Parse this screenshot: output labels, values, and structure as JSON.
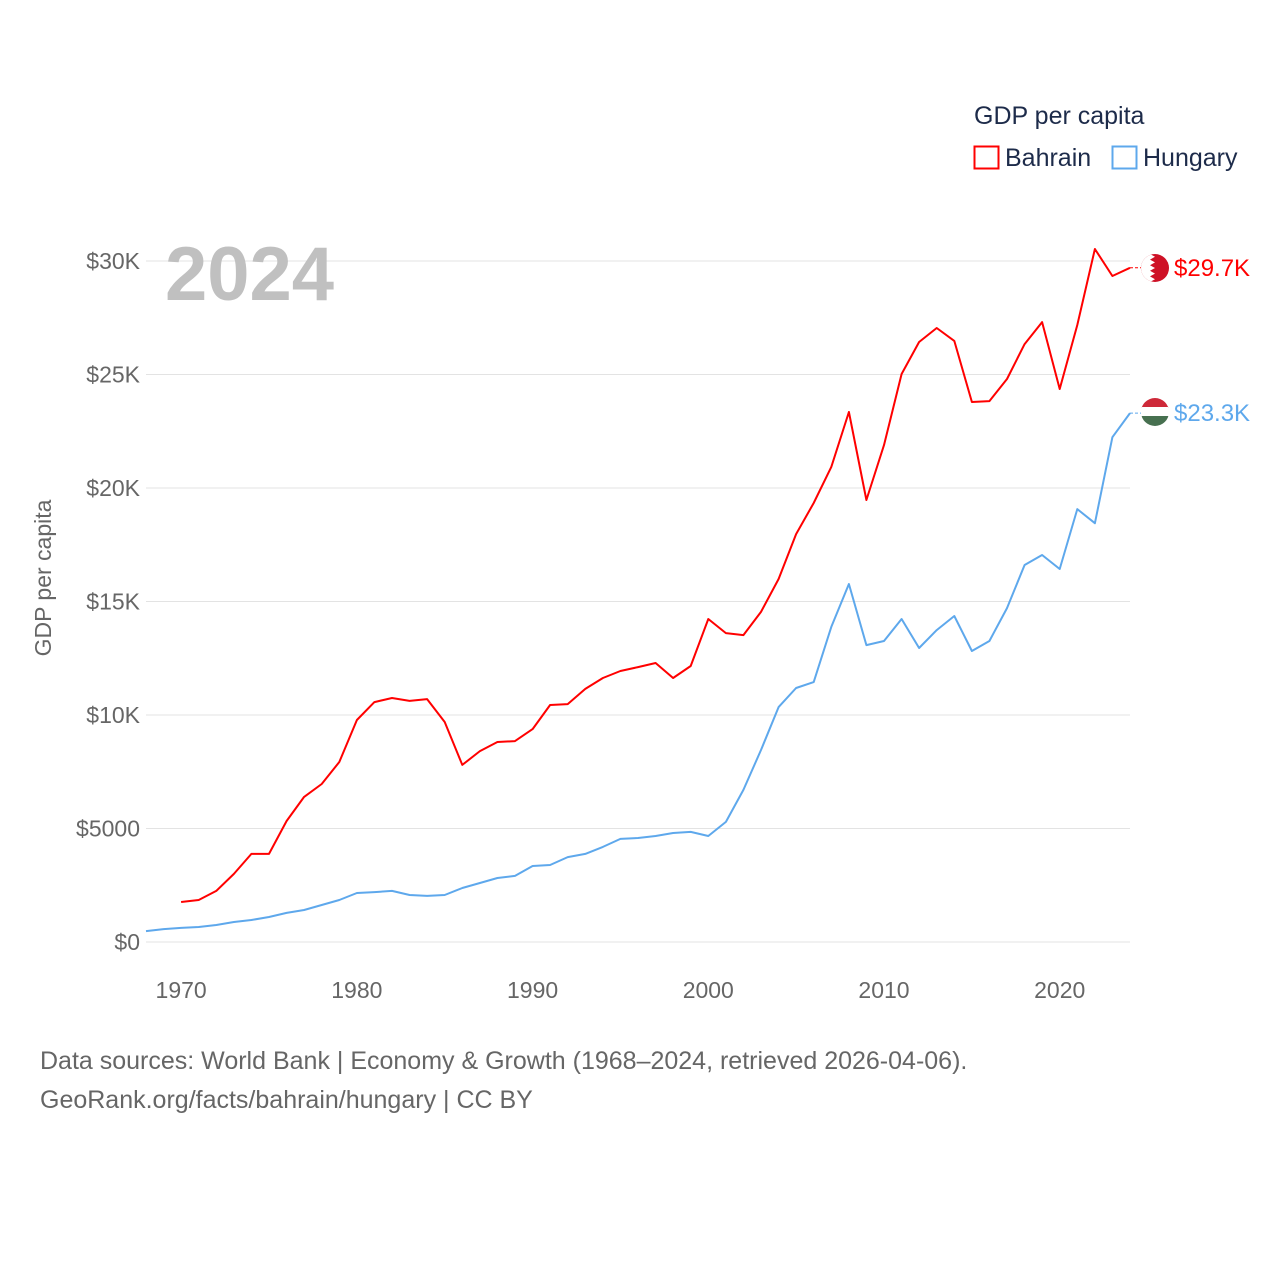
{
  "chart_data": {
    "type": "line",
    "title": "",
    "year_label": "2024",
    "ylabel": "GDP per capita",
    "xlabel": "",
    "xlim": [
      1968,
      2024
    ],
    "ylim": [
      0,
      30000
    ],
    "x_ticks": [
      1970,
      1980,
      1990,
      2000,
      2010,
      2020
    ],
    "x_tick_labels": [
      "1970",
      "1980",
      "1990",
      "2000",
      "2010",
      "2020"
    ],
    "y_ticks": [
      0,
      5000,
      10000,
      15000,
      20000,
      25000,
      30000
    ],
    "y_tick_labels": [
      "$0",
      "$5000",
      "$10K",
      "$15K",
      "$20K",
      "$25K",
      "$30K"
    ],
    "grid": true,
    "legend": {
      "title": "GDP per capita",
      "placement": "top-right"
    },
    "series": [
      {
        "name": "Bahrain",
        "color": "#ff0000",
        "end_label": "$29.7K",
        "flag": "bahrain-flag",
        "x": [
          1970,
          1971,
          1972,
          1973,
          1974,
          1975,
          1976,
          1977,
          1978,
          1979,
          1980,
          1981,
          1982,
          1983,
          1984,
          1985,
          1986,
          1987,
          1988,
          1989,
          1990,
          1991,
          1992,
          1993,
          1994,
          1995,
          1996,
          1997,
          1998,
          1999,
          2000,
          2001,
          2002,
          2003,
          2004,
          2005,
          2006,
          2007,
          2008,
          2009,
          2010,
          2011,
          2012,
          2013,
          2014,
          2015,
          2016,
          2017,
          2018,
          2019,
          2020,
          2021,
          2022,
          2023,
          2024
        ],
        "values": [
          1760,
          1850,
          2250,
          3000,
          3880,
          3880,
          5330,
          6390,
          6960,
          7930,
          9780,
          10570,
          10750,
          10620,
          10700,
          9690,
          7800,
          8410,
          8810,
          8850,
          9380,
          10440,
          10480,
          11150,
          11630,
          11940,
          12110,
          12290,
          11630,
          12160,
          14230,
          13610,
          13520,
          14540,
          15990,
          17970,
          19340,
          20930,
          23350,
          19470,
          21890,
          25020,
          26430,
          27050,
          26480,
          23790,
          23830,
          24800,
          26340,
          27310,
          24360,
          27180,
          30530,
          29340,
          29700
        ]
      },
      {
        "name": "Hungary",
        "color": "#5ea8ec",
        "end_label": "$23.3K",
        "flag": "hungary-flag",
        "x": [
          1968,
          1969,
          1970,
          1971,
          1972,
          1973,
          1974,
          1975,
          1976,
          1977,
          1978,
          1979,
          1980,
          1981,
          1982,
          1983,
          1984,
          1985,
          1986,
          1987,
          1988,
          1989,
          1990,
          1991,
          1992,
          1993,
          1994,
          1995,
          1996,
          1997,
          1998,
          1999,
          2000,
          2001,
          2002,
          2003,
          2004,
          2005,
          2006,
          2007,
          2008,
          2009,
          2010,
          2011,
          2012,
          2013,
          2014,
          2015,
          2016,
          2017,
          2018,
          2019,
          2020,
          2021,
          2022,
          2023,
          2024
        ],
        "values": [
          480,
          570,
          620,
          660,
          750,
          880,
          970,
          1100,
          1280,
          1410,
          1630,
          1850,
          2160,
          2200,
          2250,
          2070,
          2030,
          2070,
          2380,
          2600,
          2820,
          2910,
          3350,
          3390,
          3740,
          3880,
          4190,
          4540,
          4580,
          4670,
          4800,
          4850,
          4670,
          5290,
          6700,
          8460,
          10350,
          11190,
          11450,
          13880,
          15770,
          13080,
          13260,
          14230,
          12950,
          13740,
          14360,
          12820,
          13260,
          14710,
          16610,
          17050,
          16430,
          19070,
          18450,
          22240,
          23300
        ]
      }
    ]
  },
  "footer": {
    "line1": "Data sources: World Bank | Economy & Growth (1968–2024, retrieved 2026-04-06).",
    "line2": "GeoRank.org/facts/bahrain/hungary | CC BY"
  }
}
